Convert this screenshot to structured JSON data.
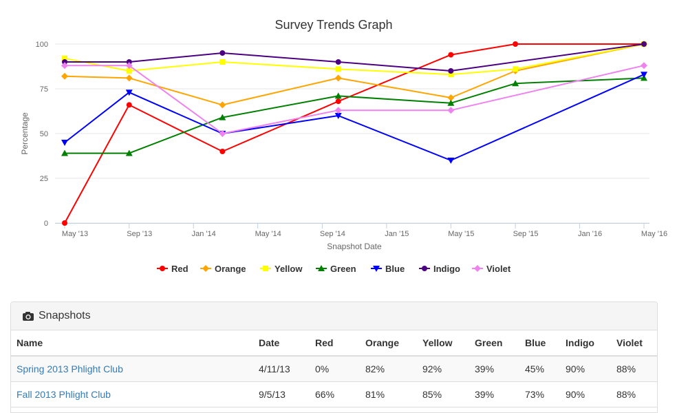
{
  "chart_data": {
    "type": "line",
    "title": "Survey Trends Graph",
    "xlabel": "Snapshot Date",
    "ylabel": "Percentage",
    "ylim": [
      0,
      100
    ],
    "yticks": [
      0,
      25,
      50,
      75,
      100
    ],
    "xticks": [
      {
        "label": "May '13",
        "t": 2013.333
      },
      {
        "label": "Sep '13",
        "t": 2013.667
      },
      {
        "label": "Jan '14",
        "t": 2014.0
      },
      {
        "label": "May '14",
        "t": 2014.333
      },
      {
        "label": "Sep '14",
        "t": 2014.667
      },
      {
        "label": "Jan '15",
        "t": 2015.0
      },
      {
        "label": "May '15",
        "t": 2015.333
      },
      {
        "label": "Sep '15",
        "t": 2015.667
      },
      {
        "label": "Jan '16",
        "t": 2016.0
      },
      {
        "label": "May '16",
        "t": 2016.333
      }
    ],
    "xlim": [
      2013.333,
      2016.333
    ],
    "x": [
      2013.333,
      2013.667,
      2014.15,
      2014.75,
      2015.333,
      2015.667,
      2016.333
    ],
    "series": [
      {
        "name": "Red",
        "color": "#ff0000",
        "marker": "circle",
        "points": [
          [
            2013.333,
            0
          ],
          [
            2013.667,
            66
          ],
          [
            2014.15,
            40
          ],
          [
            2014.75,
            68
          ],
          [
            2015.333,
            94
          ],
          [
            2015.667,
            100
          ],
          [
            2016.333,
            100
          ]
        ]
      },
      {
        "name": "Orange",
        "color": "#ffa500",
        "marker": "diamond",
        "points": [
          [
            2013.333,
            82
          ],
          [
            2013.667,
            81
          ],
          [
            2014.15,
            66
          ],
          [
            2014.75,
            81
          ],
          [
            2015.333,
            70
          ],
          [
            2015.667,
            85
          ],
          [
            2016.333,
            100
          ]
        ]
      },
      {
        "name": "Yellow",
        "color": "#ffff00",
        "marker": "square",
        "points": [
          [
            2013.333,
            92
          ],
          [
            2013.667,
            85
          ],
          [
            2014.15,
            90
          ],
          [
            2014.75,
            86
          ],
          [
            2015.333,
            83
          ],
          [
            2015.667,
            86
          ],
          [
            2016.333,
            100
          ]
        ]
      },
      {
        "name": "Green",
        "color": "#008000",
        "marker": "triangle",
        "points": [
          [
            2013.333,
            39
          ],
          [
            2013.667,
            39
          ],
          [
            2014.15,
            59
          ],
          [
            2014.75,
            71
          ],
          [
            2015.333,
            67
          ],
          [
            2015.667,
            78
          ],
          [
            2016.333,
            81
          ]
        ]
      },
      {
        "name": "Blue",
        "color": "#0000ff",
        "marker": "triangle-down",
        "points": [
          [
            2013.333,
            45
          ],
          [
            2013.667,
            73
          ],
          [
            2014.15,
            50
          ],
          [
            2014.75,
            60
          ],
          [
            2015.333,
            35
          ],
          [
            2016.333,
            83
          ]
        ]
      },
      {
        "name": "Indigo",
        "color": "#4b0082",
        "marker": "circle",
        "points": [
          [
            2013.333,
            90
          ],
          [
            2013.667,
            90
          ],
          [
            2014.15,
            95
          ],
          [
            2014.75,
            90
          ],
          [
            2015.333,
            85
          ],
          [
            2016.333,
            100
          ]
        ]
      },
      {
        "name": "Violet",
        "color": "#ee82ee",
        "marker": "diamond",
        "points": [
          [
            2013.333,
            88
          ],
          [
            2013.667,
            88
          ],
          [
            2014.15,
            50
          ],
          [
            2014.75,
            63
          ],
          [
            2015.333,
            63
          ],
          [
            2016.333,
            88
          ]
        ]
      }
    ]
  },
  "snapshots": {
    "title": "Snapshots",
    "icon": "camera-icon",
    "columns": [
      "Name",
      "Date",
      "Red",
      "Orange",
      "Yellow",
      "Green",
      "Blue",
      "Indigo",
      "Violet"
    ],
    "rows": [
      [
        "Spring 2013 Phlight Club",
        "4/11/13",
        "0%",
        "82%",
        "92%",
        "39%",
        "45%",
        "90%",
        "88%"
      ],
      [
        "Fall 2013 Phlight Club",
        "9/5/13",
        "66%",
        "81%",
        "85%",
        "39%",
        "73%",
        "90%",
        "88%"
      ]
    ]
  }
}
